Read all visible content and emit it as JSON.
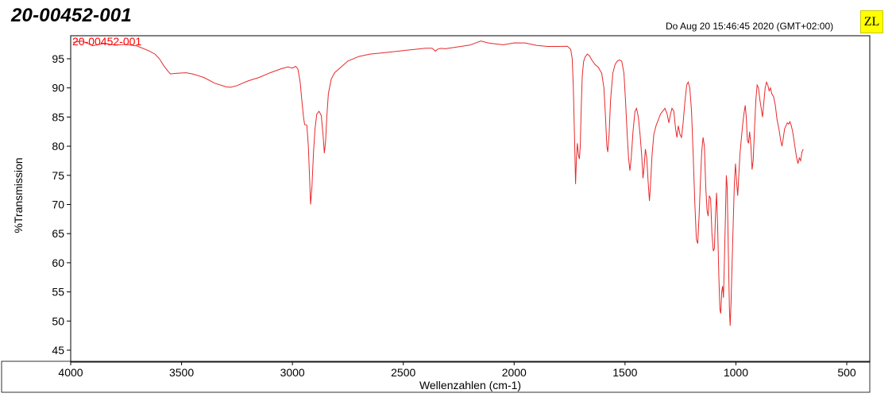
{
  "header": {
    "title": "20-00452-001",
    "timestamp": "Do Aug 20 15:46:45 2020 (GMT+02:00)",
    "badge": "ZL"
  },
  "chart_data": {
    "type": "line",
    "title": "",
    "xlabel": "Wellenzahlen (cm-1)",
    "ylabel": "%Transmission",
    "xlim": [
      4000,
      550
    ],
    "ylim": [
      44,
      99.5
    ],
    "x_reversed": true,
    "x_ticks": [
      4000,
      3500,
      3000,
      2500,
      2000,
      1500,
      1000,
      500
    ],
    "y_ticks": [
      45,
      50,
      55,
      60,
      65,
      70,
      75,
      80,
      85,
      90,
      95
    ],
    "grid": false,
    "colors": {
      "line": "#e8282a",
      "label": "#ff0000",
      "frame": "#000000"
    },
    "series": [
      {
        "name": "20-00452-001",
        "points": [
          [
            3990,
            98.1
          ],
          [
            3950,
            97.8
          ],
          [
            3900,
            97.5
          ],
          [
            3850,
            97.6
          ],
          [
            3800,
            97.4
          ],
          [
            3750,
            97.5
          ],
          [
            3700,
            97.1
          ],
          [
            3650,
            96.6
          ],
          [
            3620,
            95.9
          ],
          [
            3600,
            95.0
          ],
          [
            3580,
            93.8
          ],
          [
            3560,
            92.8
          ],
          [
            3550,
            92.4
          ],
          [
            3520,
            92.5
          ],
          [
            3480,
            92.6
          ],
          [
            3450,
            92.4
          ],
          [
            3400,
            91.8
          ],
          [
            3350,
            90.8
          ],
          [
            3300,
            90.2
          ],
          [
            3280,
            90.1
          ],
          [
            3250,
            90.4
          ],
          [
            3200,
            91.2
          ],
          [
            3150,
            91.8
          ],
          [
            3100,
            92.6
          ],
          [
            3050,
            93.3
          ],
          [
            3020,
            93.6
          ],
          [
            3000,
            93.4
          ],
          [
            2985,
            93.7
          ],
          [
            2975,
            93.2
          ],
          [
            2965,
            91.0
          ],
          [
            2958,
            88.0
          ],
          [
            2950,
            85.0
          ],
          [
            2945,
            83.7
          ],
          [
            2935,
            83.6
          ],
          [
            2928,
            80.0
          ],
          [
            2922,
            74.0
          ],
          [
            2918,
            70.0
          ],
          [
            2912,
            73.0
          ],
          [
            2905,
            79.0
          ],
          [
            2898,
            83.0
          ],
          [
            2890,
            85.5
          ],
          [
            2880,
            86.0
          ],
          [
            2870,
            85.3
          ],
          [
            2862,
            82.0
          ],
          [
            2856,
            78.8
          ],
          [
            2850,
            81.0
          ],
          [
            2845,
            85.0
          ],
          [
            2838,
            89.0
          ],
          [
            2825,
            91.5
          ],
          [
            2810,
            92.6
          ],
          [
            2780,
            93.6
          ],
          [
            2750,
            94.6
          ],
          [
            2700,
            95.4
          ],
          [
            2650,
            95.8
          ],
          [
            2600,
            96.0
          ],
          [
            2550,
            96.2
          ],
          [
            2500,
            96.4
          ],
          [
            2450,
            96.6
          ],
          [
            2400,
            96.8
          ],
          [
            2370,
            97.0
          ],
          [
            2355,
            96.5
          ],
          [
            2345,
            96.9
          ],
          [
            2330,
            96.6
          ],
          [
            2310,
            97.0
          ],
          [
            2250,
            97.3
          ],
          [
            2200,
            97.6
          ],
          [
            2150,
            98.0
          ],
          [
            2120,
            97.9
          ],
          [
            2100,
            97.7
          ],
          [
            2050,
            97.5
          ],
          [
            2000,
            97.8
          ],
          [
            1950,
            97.7
          ],
          [
            1900,
            97.5
          ],
          [
            1850,
            97.4
          ],
          [
            1800,
            97.3
          ],
          [
            1760,
            97.1
          ],
          [
            1745,
            96.8
          ],
          [
            1738,
            95.0
          ],
          [
            1733,
            90.0
          ],
          [
            1728,
            82.0
          ],
          [
            1723,
            73.5
          ],
          [
            1719,
            78.0
          ],
          [
            1715,
            80.5
          ],
          [
            1710,
            78.5
          ],
          [
            1706,
            77.8
          ],
          [
            1702,
            80.0
          ],
          [
            1698,
            86.0
          ],
          [
            1693,
            92.0
          ],
          [
            1687,
            94.5
          ],
          [
            1680,
            95.3
          ],
          [
            1670,
            95.8
          ],
          [
            1660,
            95.5
          ],
          [
            1650,
            94.8
          ],
          [
            1635,
            94.0
          ],
          [
            1620,
            93.5
          ],
          [
            1605,
            92.5
          ],
          [
            1595,
            90.0
          ],
          [
            1588,
            85.0
          ],
          [
            1582,
            80.0
          ],
          [
            1578,
            79.0
          ],
          [
            1572,
            82.0
          ],
          [
            1565,
            88.0
          ],
          [
            1555,
            92.5
          ],
          [
            1545,
            94.0
          ],
          [
            1535,
            94.6
          ],
          [
            1525,
            94.8
          ],
          [
            1515,
            94.6
          ],
          [
            1505,
            92.5
          ],
          [
            1498,
            88.0
          ],
          [
            1490,
            82.0
          ],
          [
            1484,
            78.0
          ],
          [
            1478,
            75.8
          ],
          [
            1472,
            78.0
          ],
          [
            1464,
            82.5
          ],
          [
            1455,
            86.0
          ],
          [
            1448,
            86.5
          ],
          [
            1440,
            85.0
          ],
          [
            1432,
            82.0
          ],
          [
            1425,
            78.5
          ],
          [
            1419,
            74.5
          ],
          [
            1414,
            76.5
          ],
          [
            1408,
            79.5
          ],
          [
            1402,
            78.0
          ],
          [
            1396,
            74.0
          ],
          [
            1390,
            70.6
          ],
          [
            1385,
            73.5
          ],
          [
            1378,
            78.5
          ],
          [
            1370,
            82.0
          ],
          [
            1360,
            83.5
          ],
          [
            1350,
            84.5
          ],
          [
            1340,
            85.5
          ],
          [
            1330,
            86.0
          ],
          [
            1320,
            86.5
          ],
          [
            1310,
            85.5
          ],
          [
            1302,
            84.0
          ],
          [
            1295,
            85.5
          ],
          [
            1288,
            86.5
          ],
          [
            1280,
            86.0
          ],
          [
            1272,
            83.0
          ],
          [
            1266,
            81.5
          ],
          [
            1260,
            83.5
          ],
          [
            1252,
            82.0
          ],
          [
            1245,
            81.5
          ],
          [
            1238,
            84.0
          ],
          [
            1230,
            87.5
          ],
          [
            1222,
            90.5
          ],
          [
            1215,
            91.0
          ],
          [
            1208,
            90.0
          ],
          [
            1200,
            86.0
          ],
          [
            1192,
            78.0
          ],
          [
            1185,
            70.0
          ],
          [
            1178,
            64.0
          ],
          [
            1172,
            63.3
          ],
          [
            1166,
            68.0
          ],
          [
            1160,
            74.0
          ],
          [
            1154,
            79.0
          ],
          [
            1148,
            81.5
          ],
          [
            1142,
            80.0
          ],
          [
            1136,
            73.0
          ],
          [
            1130,
            69.0
          ],
          [
            1125,
            68.0
          ],
          [
            1120,
            71.5
          ],
          [
            1114,
            71.0
          ],
          [
            1108,
            65.0
          ],
          [
            1102,
            62.0
          ],
          [
            1097,
            62.5
          ],
          [
            1092,
            68.0
          ],
          [
            1087,
            72.0
          ],
          [
            1082,
            66.0
          ],
          [
            1077,
            58.0
          ],
          [
            1072,
            52.0
          ],
          [
            1068,
            51.3
          ],
          [
            1064,
            55.0
          ],
          [
            1060,
            56.0
          ],
          [
            1056,
            54.0
          ],
          [
            1052,
            60.0
          ],
          [
            1047,
            68.0
          ],
          [
            1043,
            75.0
          ],
          [
            1039,
            73.0
          ],
          [
            1034,
            62.0
          ],
          [
            1029,
            52.0
          ],
          [
            1026,
            49.2
          ],
          [
            1022,
            53.0
          ],
          [
            1017,
            60.0
          ],
          [
            1012,
            67.0
          ],
          [
            1007,
            73.5
          ],
          [
            1002,
            77.0
          ],
          [
            997,
            74.0
          ],
          [
            992,
            71.5
          ],
          [
            987,
            75.0
          ],
          [
            982,
            78.5
          ],
          [
            976,
            81.0
          ],
          [
            970,
            83.5
          ],
          [
            964,
            85.5
          ],
          [
            958,
            87.0
          ],
          [
            953,
            85.0
          ],
          [
            948,
            81.0
          ],
          [
            943,
            80.5
          ],
          [
            938,
            82.5
          ],
          [
            932,
            80.0
          ],
          [
            927,
            76.0
          ],
          [
            922,
            77.5
          ],
          [
            916,
            83.0
          ],
          [
            910,
            88.0
          ],
          [
            904,
            90.5
          ],
          [
            898,
            90.0
          ],
          [
            892,
            88.0
          ],
          [
            886,
            86.5
          ],
          [
            880,
            85.0
          ],
          [
            874,
            87.5
          ],
          [
            868,
            90.0
          ],
          [
            862,
            91.0
          ],
          [
            856,
            90.5
          ],
          [
            850,
            89.5
          ],
          [
            844,
            90.0
          ],
          [
            838,
            89.0
          ],
          [
            830,
            88.5
          ],
          [
            822,
            87.0
          ],
          [
            814,
            84.5
          ],
          [
            806,
            83.0
          ],
          [
            798,
            81.0
          ],
          [
            792,
            80.0
          ],
          [
            786,
            81.5
          ],
          [
            780,
            83.0
          ],
          [
            774,
            83.5
          ],
          [
            768,
            84.0
          ],
          [
            762,
            83.8
          ],
          [
            756,
            84.2
          ],
          [
            750,
            83.5
          ],
          [
            744,
            82.5
          ],
          [
            738,
            81.0
          ],
          [
            732,
            79.5
          ],
          [
            726,
            78.0
          ],
          [
            720,
            77.0
          ],
          [
            714,
            78.0
          ],
          [
            708,
            77.5
          ],
          [
            702,
            79.0
          ],
          [
            696,
            79.5
          ]
        ]
      }
    ]
  }
}
